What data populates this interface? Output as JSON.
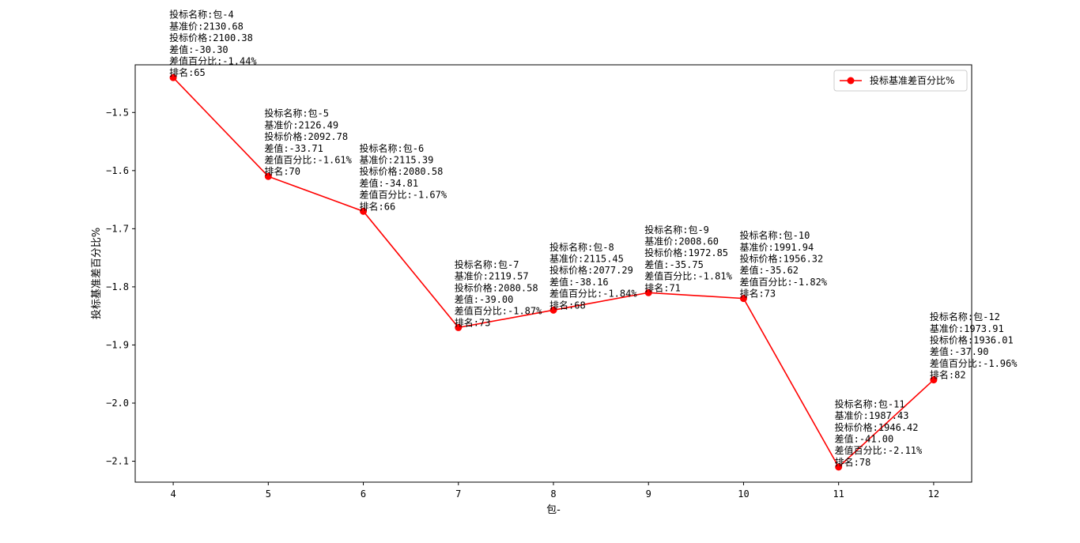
{
  "chart_data": {
    "type": "line",
    "title": "",
    "xlabel": "包-",
    "ylabel": "投标基准差百分比%",
    "x": [
      4,
      5,
      6,
      7,
      8,
      9,
      10,
      11,
      12
    ],
    "xticks": [
      "4",
      "5",
      "6",
      "7",
      "8",
      "9",
      "10",
      "11",
      "12"
    ],
    "xlim": [
      3.6,
      12.4
    ],
    "ylim": [
      -2.136,
      -1.418
    ],
    "yticks": [
      -1.5,
      -1.6,
      -1.7,
      -1.8,
      -1.9,
      -2.0,
      -2.1
    ],
    "ytick_labels": [
      "−1.5",
      "−1.6",
      "−1.7",
      "−1.8",
      "−1.9",
      "−2.0",
      "−2.1"
    ],
    "grid": false,
    "legend_position": "top-right",
    "series": [
      {
        "name": "投标基准差百分比%",
        "color": "#ff0000",
        "marker": "circle",
        "values": [
          -1.44,
          -1.61,
          -1.67,
          -1.87,
          -1.84,
          -1.81,
          -1.82,
          -2.11,
          -1.96
        ]
      }
    ],
    "annotations": [
      {
        "x": 4,
        "y": -1.44,
        "lines": [
          "投标名称:包-4",
          "基准价:2130.68",
          "投标价格:2100.38",
          "差值:-30.30",
          "差值百分比:-1.44%",
          "排名:65"
        ]
      },
      {
        "x": 5,
        "y": -1.61,
        "lines": [
          "投标名称:包-5",
          "基准价:2126.49",
          "投标价格:2092.78",
          "差值:-33.71",
          "差值百分比:-1.61%",
          "排名:70"
        ]
      },
      {
        "x": 6,
        "y": -1.67,
        "lines": [
          "投标名称:包-6",
          "基准价:2115.39",
          "投标价格:2080.58",
          "差值:-34.81",
          "差值百分比:-1.67%",
          "排名:66"
        ]
      },
      {
        "x": 7,
        "y": -1.87,
        "lines": [
          "投标名称:包-7",
          "基准价:2119.57",
          "投标价格:2080.58",
          "差值:-39.00",
          "差值百分比:-1.87%",
          "排名:73"
        ]
      },
      {
        "x": 8,
        "y": -1.84,
        "lines": [
          "投标名称:包-8",
          "基准价:2115.45",
          "投标价格:2077.29",
          "差值:-38.16",
          "差值百分比:-1.84%",
          "排名:68"
        ]
      },
      {
        "x": 9,
        "y": -1.81,
        "lines": [
          "投标名称:包-9",
          "基准价:2008.60",
          "投标价格:1972.85",
          "差值:-35.75",
          "差值百分比:-1.81%",
          "排名:71"
        ]
      },
      {
        "x": 10,
        "y": -1.82,
        "lines": [
          "投标名称:包-10",
          "基准价:1991.94",
          "投标价格:1956.32",
          "差值:-35.62",
          "差值百分比:-1.82%",
          "排名:73"
        ]
      },
      {
        "x": 11,
        "y": -2.11,
        "lines": [
          "投标名称:包-11",
          "基准价:1987.43",
          "投标价格:1946.42",
          "差值:-41.00",
          "差值百分比:-2.11%",
          "排名:78"
        ]
      },
      {
        "x": 12,
        "y": -1.96,
        "lines": [
          "投标名称:包-12",
          "基准价:1973.91",
          "投标价格:1936.01",
          "差值:-37.90",
          "差值百分比:-1.96%",
          "排名:82"
        ]
      }
    ]
  }
}
